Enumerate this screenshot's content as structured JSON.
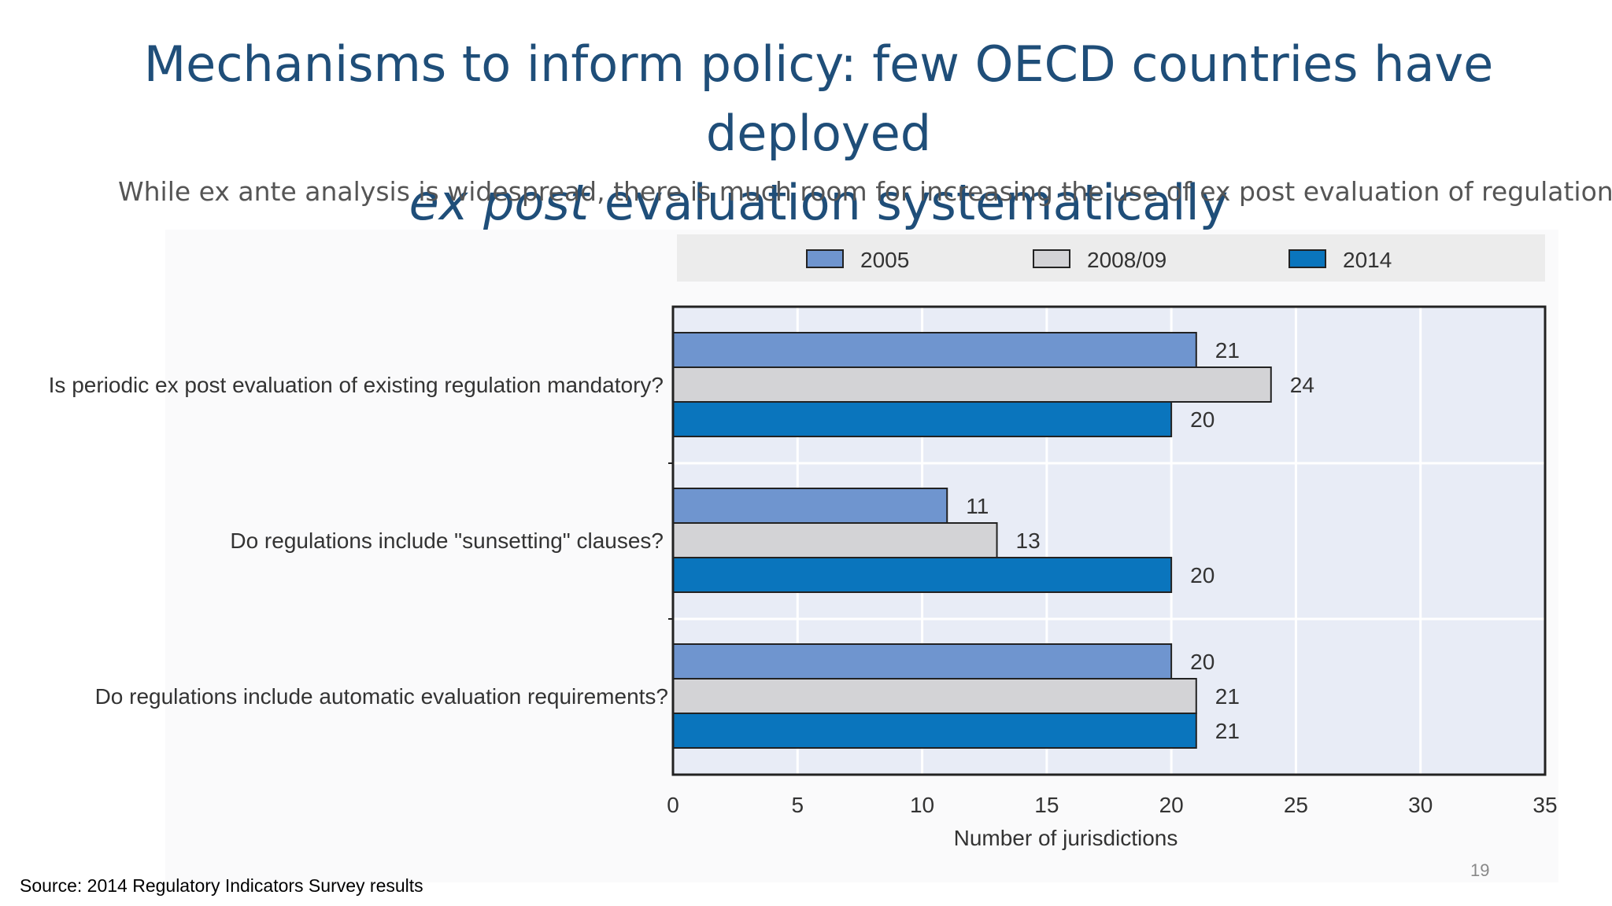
{
  "slide": {
    "title_line1": "Mechanisms to inform policy: few OECD countries have deployed",
    "title_line2_italic": "ex post",
    "title_line2_rest": " evaluation systematically",
    "subtitle": "While ex ante analysis is widespread, there is much room for increasing the use of ex post evaluation of regulations",
    "source": "Source: 2014 Regulatory Indicators Survey results",
    "page_number": "19"
  },
  "colors": {
    "series_2005": "#6f95cf",
    "series_2008": "#d3d3d6",
    "series_2014": "#0a75bd",
    "plot_bg": "#e8ecf6",
    "legend_bg": "#ececec",
    "grid": "#ffffff",
    "bar_stroke": "#222222",
    "axis": "#222222",
    "text": "#333333"
  },
  "chart_data": {
    "type": "bar",
    "orientation": "horizontal",
    "title": "",
    "xlabel": "Number of jurisdictions",
    "ylabel": "",
    "xlim": [
      0,
      35
    ],
    "xticks": [
      0,
      5,
      10,
      15,
      20,
      25,
      30,
      35
    ],
    "grid": true,
    "legend_position": "top",
    "categories": [
      "Is periodic ex post evaluation of existing regulation mandatory?",
      "Do regulations include \"sunsetting\" clauses?",
      "Do regulations include automatic evaluation requirements?"
    ],
    "series": [
      {
        "name": "2005",
        "values": [
          21,
          11,
          20
        ]
      },
      {
        "name": "2008/09",
        "values": [
          24,
          13,
          21
        ]
      },
      {
        "name": "2014",
        "values": [
          20,
          20,
          21
        ]
      }
    ]
  }
}
